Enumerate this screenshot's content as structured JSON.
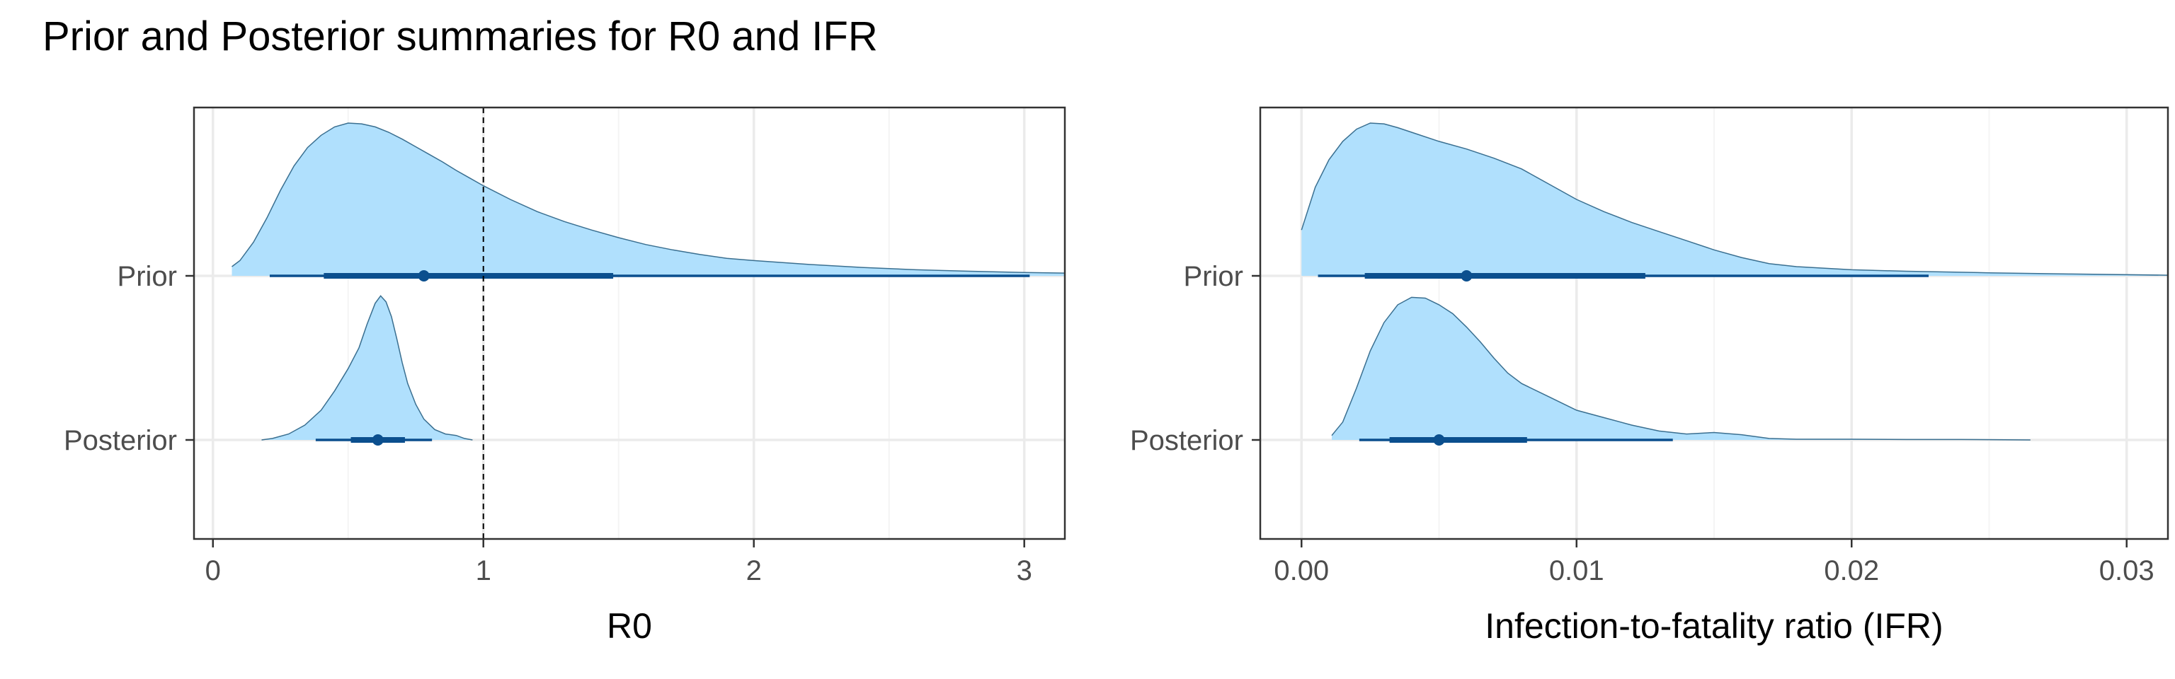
{
  "figure_title": "Prior and Posterior summaries for R0 and IFR",
  "colors": {
    "density_fill": "#b0e0fd",
    "density_stroke": "#3a6f90",
    "interval": "#0b4f8e",
    "grid_major": "#ebebeb",
    "grid_minor": "#f4f4f4",
    "panel_border": "#333333",
    "tick_label": "#4d4d4d"
  },
  "chart_data": [
    {
      "type": "density",
      "title": "",
      "xlabel": "R0",
      "ylabel": "",
      "xlim": [
        -0.07,
        3.15
      ],
      "xticks": [
        0,
        1,
        2,
        3
      ],
      "xtick_labels": [
        "0",
        "1",
        "2",
        "3"
      ],
      "categories": [
        "Prior",
        "Posterior"
      ],
      "reference_line": {
        "x": 1,
        "style": "dashed"
      },
      "grid": true,
      "series": [
        {
          "name": "Prior",
          "density": [
            [
              0.07,
              0.06
            ],
            [
              0.1,
              0.1
            ],
            [
              0.15,
              0.22
            ],
            [
              0.2,
              0.38
            ],
            [
              0.25,
              0.56
            ],
            [
              0.3,
              0.72
            ],
            [
              0.35,
              0.84
            ],
            [
              0.4,
              0.92
            ],
            [
              0.45,
              0.975
            ],
            [
              0.5,
              1.0
            ],
            [
              0.55,
              0.995
            ],
            [
              0.6,
              0.975
            ],
            [
              0.65,
              0.94
            ],
            [
              0.7,
              0.895
            ],
            [
              0.75,
              0.845
            ],
            [
              0.8,
              0.795
            ],
            [
              0.85,
              0.745
            ],
            [
              0.9,
              0.69
            ],
            [
              0.95,
              0.64
            ],
            [
              1.0,
              0.59
            ],
            [
              1.1,
              0.5
            ],
            [
              1.2,
              0.42
            ],
            [
              1.3,
              0.355
            ],
            [
              1.4,
              0.3
            ],
            [
              1.5,
              0.25
            ],
            [
              1.6,
              0.205
            ],
            [
              1.7,
              0.17
            ],
            [
              1.8,
              0.14
            ],
            [
              1.9,
              0.115
            ],
            [
              2.0,
              0.1
            ],
            [
              2.2,
              0.075
            ],
            [
              2.4,
              0.055
            ],
            [
              2.6,
              0.04
            ],
            [
              2.8,
              0.03
            ],
            [
              3.0,
              0.022
            ],
            [
              3.15,
              0.018
            ]
          ],
          "point": 0.78,
          "interval_66": [
            0.41,
            1.48
          ],
          "interval_95": [
            0.21,
            3.02
          ]
        },
        {
          "name": "Posterior",
          "density": [
            [
              0.18,
              0.0
            ],
            [
              0.22,
              0.01
            ],
            [
              0.28,
              0.04
            ],
            [
              0.34,
              0.1
            ],
            [
              0.4,
              0.2
            ],
            [
              0.45,
              0.33
            ],
            [
              0.5,
              0.48
            ],
            [
              0.54,
              0.62
            ],
            [
              0.57,
              0.78
            ],
            [
              0.6,
              0.92
            ],
            [
              0.62,
              0.97
            ],
            [
              0.64,
              0.93
            ],
            [
              0.66,
              0.83
            ],
            [
              0.68,
              0.68
            ],
            [
              0.7,
              0.52
            ],
            [
              0.72,
              0.38
            ],
            [
              0.75,
              0.24
            ],
            [
              0.78,
              0.14
            ],
            [
              0.82,
              0.07
            ],
            [
              0.86,
              0.04
            ],
            [
              0.9,
              0.03
            ],
            [
              0.93,
              0.01
            ],
            [
              0.96,
              0.0
            ]
          ],
          "point": 0.61,
          "interval_66": [
            0.51,
            0.71
          ],
          "interval_95": [
            0.38,
            0.81
          ]
        }
      ]
    },
    {
      "type": "density",
      "title": "",
      "xlabel": "Infection-to-fatality ratio (IFR)",
      "ylabel": "",
      "xlim": [
        -0.0015,
        0.0315
      ],
      "xticks": [
        0,
        0.01,
        0.02,
        0.03
      ],
      "xtick_labels": [
        "0.00",
        "0.01",
        "0.02",
        "0.03"
      ],
      "categories": [
        "Prior",
        "Posterior"
      ],
      "grid": true,
      "series": [
        {
          "name": "Prior",
          "density": [
            [
              0.0,
              0.3
            ],
            [
              0.0005,
              0.58
            ],
            [
              0.001,
              0.76
            ],
            [
              0.0015,
              0.88
            ],
            [
              0.002,
              0.96
            ],
            [
              0.0025,
              1.0
            ],
            [
              0.003,
              0.995
            ],
            [
              0.0035,
              0.97
            ],
            [
              0.004,
              0.94
            ],
            [
              0.005,
              0.88
            ],
            [
              0.006,
              0.83
            ],
            [
              0.007,
              0.77
            ],
            [
              0.008,
              0.7
            ],
            [
              0.009,
              0.6
            ],
            [
              0.01,
              0.5
            ],
            [
              0.011,
              0.42
            ],
            [
              0.012,
              0.35
            ],
            [
              0.013,
              0.29
            ],
            [
              0.014,
              0.23
            ],
            [
              0.015,
              0.17
            ],
            [
              0.016,
              0.12
            ],
            [
              0.017,
              0.08
            ],
            [
              0.018,
              0.06
            ],
            [
              0.02,
              0.04
            ],
            [
              0.022,
              0.03
            ],
            [
              0.025,
              0.02
            ],
            [
              0.028,
              0.012
            ],
            [
              0.0315,
              0.004
            ]
          ],
          "point": 0.006,
          "interval_66": [
            0.0023,
            0.0125
          ],
          "interval_95": [
            0.0006,
            0.0228
          ]
        },
        {
          "name": "Posterior",
          "density": [
            [
              0.0011,
              0.03
            ],
            [
              0.0015,
              0.12
            ],
            [
              0.002,
              0.35
            ],
            [
              0.0025,
              0.6
            ],
            [
              0.003,
              0.79
            ],
            [
              0.0035,
              0.91
            ],
            [
              0.004,
              0.96
            ],
            [
              0.0045,
              0.955
            ],
            [
              0.005,
              0.91
            ],
            [
              0.0055,
              0.85
            ],
            [
              0.006,
              0.76
            ],
            [
              0.0065,
              0.66
            ],
            [
              0.007,
              0.55
            ],
            [
              0.0075,
              0.45
            ],
            [
              0.008,
              0.38
            ],
            [
              0.009,
              0.29
            ],
            [
              0.01,
              0.2
            ],
            [
              0.011,
              0.15
            ],
            [
              0.012,
              0.1
            ],
            [
              0.013,
              0.06
            ],
            [
              0.014,
              0.04
            ],
            [
              0.015,
              0.05
            ],
            [
              0.016,
              0.035
            ],
            [
              0.017,
              0.01
            ],
            [
              0.018,
              0.005
            ],
            [
              0.02,
              0.005
            ],
            [
              0.022,
              0.003
            ],
            [
              0.024,
              0.003
            ],
            [
              0.0265,
              0.0
            ]
          ],
          "point": 0.005,
          "interval_66": [
            0.0032,
            0.0082
          ],
          "interval_95": [
            0.0021,
            0.0135
          ]
        }
      ]
    }
  ]
}
